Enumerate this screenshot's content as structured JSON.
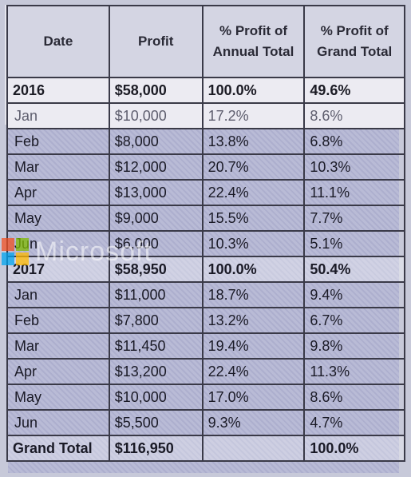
{
  "table": {
    "headers": {
      "date": "Date",
      "profit": "Profit",
      "pct_annual": "% Profit of Annual Total",
      "pct_grand": "% Profit of Grand Total"
    },
    "rows": [
      {
        "kind": "year",
        "date": "2016",
        "profit": "$58,000",
        "pct_annual": "100.0%",
        "pct_grand": "49.6%"
      },
      {
        "kind": "jan16",
        "date": "Jan",
        "profit": "$10,000",
        "pct_annual": "17.2%",
        "pct_grand": "8.6%"
      },
      {
        "kind": "month",
        "date": "Feb",
        "profit": "$8,000",
        "pct_annual": "13.8%",
        "pct_grand": "6.8%"
      },
      {
        "kind": "month",
        "date": "Mar",
        "profit": "$12,000",
        "pct_annual": "20.7%",
        "pct_grand": "10.3%"
      },
      {
        "kind": "month",
        "date": "Apr",
        "profit": "$13,000",
        "pct_annual": "22.4%",
        "pct_grand": "11.1%"
      },
      {
        "kind": "month",
        "date": "May",
        "profit": "$9,000",
        "pct_annual": "15.5%",
        "pct_grand": "7.7%"
      },
      {
        "kind": "month",
        "date": "Jun",
        "profit": "$6,000",
        "pct_annual": "10.3%",
        "pct_grand": "5.1%"
      },
      {
        "kind": "year17",
        "date": "2017",
        "profit": "$58,950",
        "pct_annual": "100.0%",
        "pct_grand": "50.4%"
      },
      {
        "kind": "month",
        "date": "Jan",
        "profit": "$11,000",
        "pct_annual": "18.7%",
        "pct_grand": "9.4%"
      },
      {
        "kind": "month",
        "date": "Feb",
        "profit": "$7,800",
        "pct_annual": "13.2%",
        "pct_grand": "6.7%"
      },
      {
        "kind": "month",
        "date": "Mar",
        "profit": "$11,450",
        "pct_annual": "19.4%",
        "pct_grand": "9.8%"
      },
      {
        "kind": "month",
        "date": "Apr",
        "profit": "$13,200",
        "pct_annual": "22.4%",
        "pct_grand": "11.3%"
      },
      {
        "kind": "month",
        "date": "May",
        "profit": "$10,000",
        "pct_annual": "17.0%",
        "pct_grand": "8.6%"
      },
      {
        "kind": "month",
        "date": "Jun",
        "profit": "$5,500",
        "pct_annual": "9.3%",
        "pct_grand": "4.7%"
      },
      {
        "kind": "total",
        "date": "Grand Total",
        "profit": "$116,950",
        "pct_annual": "",
        "pct_grand": "100.0%"
      }
    ]
  },
  "watermark": {
    "text": "Microsoft",
    "logo_colors": [
      "#f25022",
      "#7fba00",
      "#00a4ef",
      "#ffb900"
    ]
  }
}
